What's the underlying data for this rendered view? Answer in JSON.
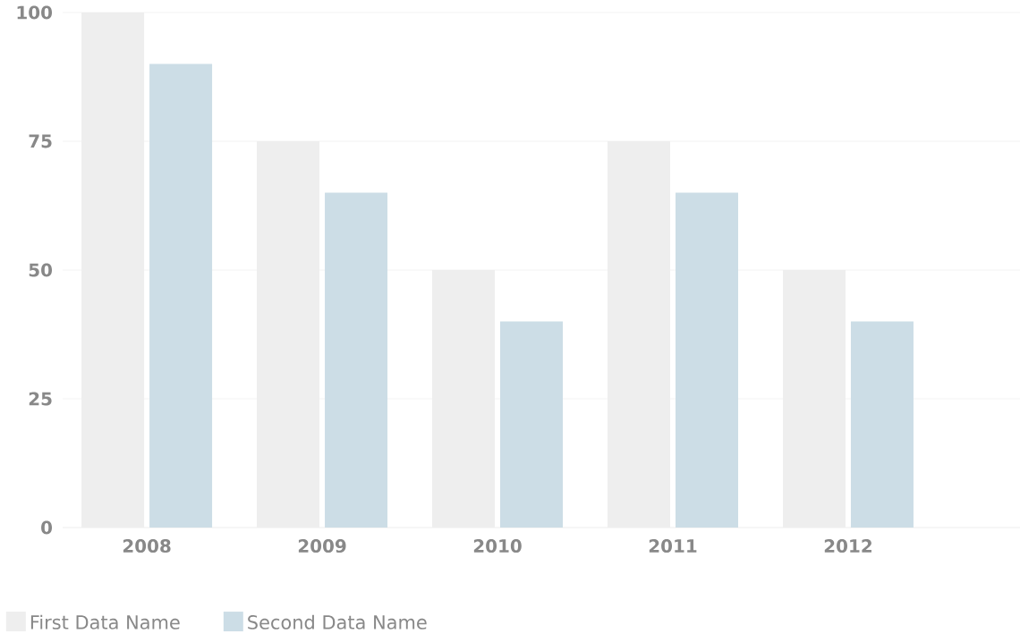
{
  "chart_data": {
    "type": "bar",
    "categories": [
      "2008",
      "2009",
      "2010",
      "2011",
      "2012"
    ],
    "series": [
      {
        "name": "First Data Name",
        "color": "#eeeeee",
        "values": [
          100,
          75,
          50,
          75,
          50
        ]
      },
      {
        "name": "Second Data Name",
        "color": "#ccdde6",
        "values": [
          90,
          65,
          40,
          65,
          40
        ]
      }
    ],
    "ylim": [
      0,
      100
    ],
    "yticks": [
      0,
      25,
      50,
      75,
      100
    ],
    "grid": "y",
    "legend": "bottom left"
  }
}
